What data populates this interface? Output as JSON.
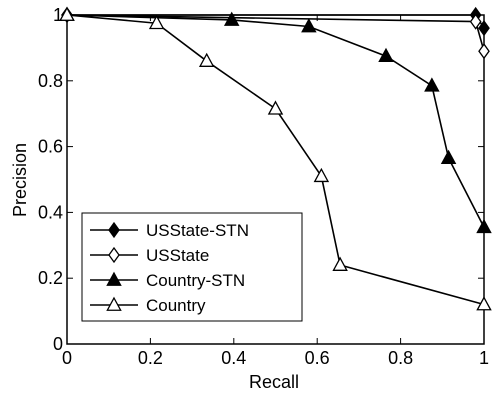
{
  "chart_data": {
    "type": "line",
    "title": "",
    "xlabel": "Recall",
    "ylabel": "Precision",
    "xlim": [
      0,
      1
    ],
    "ylim": [
      0,
      1
    ],
    "xticks": [
      {
        "value": 0,
        "label": "0"
      },
      {
        "value": 0.2,
        "label": "0.2"
      },
      {
        "value": 0.4,
        "label": "0.4"
      },
      {
        "value": 0.6,
        "label": "0.6"
      },
      {
        "value": 0.8,
        "label": "0.8"
      },
      {
        "value": 1,
        "label": "1"
      }
    ],
    "yticks": [
      {
        "value": 0,
        "label": "0"
      },
      {
        "value": 0.2,
        "label": "0.2"
      },
      {
        "value": 0.4,
        "label": "0.4"
      },
      {
        "value": 0.6,
        "label": "0.6"
      },
      {
        "value": 0.8,
        "label": "0.8"
      },
      {
        "value": 1,
        "label": "1"
      }
    ],
    "grid": false,
    "legend_position": "lower-left",
    "series": [
      {
        "name": "USState-STN",
        "marker": "diamond",
        "filled": true,
        "color": "#000000",
        "points": [
          [
            0,
            1.0
          ],
          [
            0.98,
            1.0
          ],
          [
            1.0,
            0.96
          ]
        ]
      },
      {
        "name": "USState",
        "marker": "diamond",
        "filled": false,
        "color": "#000000",
        "points": [
          [
            0,
            1.0
          ],
          [
            0.98,
            0.98
          ],
          [
            1.0,
            0.89
          ]
        ]
      },
      {
        "name": "Country-STN",
        "marker": "triangle",
        "filled": true,
        "color": "#000000",
        "points": [
          [
            0,
            1.0
          ],
          [
            0.395,
            0.985
          ],
          [
            0.58,
            0.965
          ],
          [
            0.765,
            0.875
          ],
          [
            0.875,
            0.785
          ],
          [
            0.915,
            0.565
          ],
          [
            1.0,
            0.355
          ]
        ]
      },
      {
        "name": "Country",
        "marker": "triangle",
        "filled": false,
        "color": "#000000",
        "points": [
          [
            0,
            1.0
          ],
          [
            0.215,
            0.975
          ],
          [
            0.335,
            0.86
          ],
          [
            0.5,
            0.715
          ],
          [
            0.61,
            0.51
          ],
          [
            0.655,
            0.24
          ],
          [
            1.0,
            0.12
          ]
        ]
      }
    ]
  }
}
